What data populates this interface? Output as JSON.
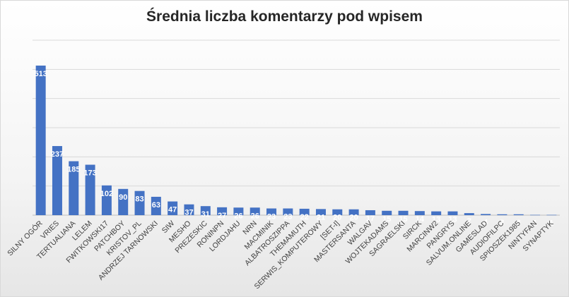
{
  "chart_data": {
    "type": "bar",
    "title": "Średnia liczba komentarzy pod wpisem",
    "xlabel": "",
    "ylabel": "",
    "ylim": [
      0,
      600
    ],
    "grid": true,
    "legend": "none",
    "bar_color": "#4472c4",
    "gridline_color": "#d9d9d9",
    "label_color": "#ffffff",
    "categories": [
      "SILNY OGÓR",
      "VRIES",
      "TERTUALIANA",
      "LELEM",
      "FWITKOWSKI17",
      "PATCHBOY",
      "KRISTOV_PL",
      "ANDRZEJ TARNOWSKI",
      "SIW",
      "MESHO",
      "PREZESKIC",
      "RONINPN",
      "LORDJAHU",
      "NRN",
      "MACMINIK",
      "ALBATROSZIPPA",
      "THEMAMUTH",
      "SERWIS_KOMPUTEROWY",
      "[SET-I]",
      "MASTERSANTA",
      "WALGAV",
      "WOJTEKADAMS",
      "SAGRAELSKI",
      "SIRCK",
      "MARCINW2",
      "PANGRYS",
      "SALVUM.ONLINE",
      "GAMESLAD",
      "AUDIOFILPC",
      "SPIOSZEK1985",
      "NINTYFAN",
      "SYNAPTYK"
    ],
    "values": [
      513,
      237,
      185,
      173,
      102,
      90,
      83,
      63,
      47,
      37,
      31,
      27,
      26,
      26,
      23,
      23,
      22,
      21,
      20,
      20,
      17,
      15,
      15,
      14,
      13,
      13,
      7,
      4,
      3,
      3,
      1,
      1
    ]
  }
}
